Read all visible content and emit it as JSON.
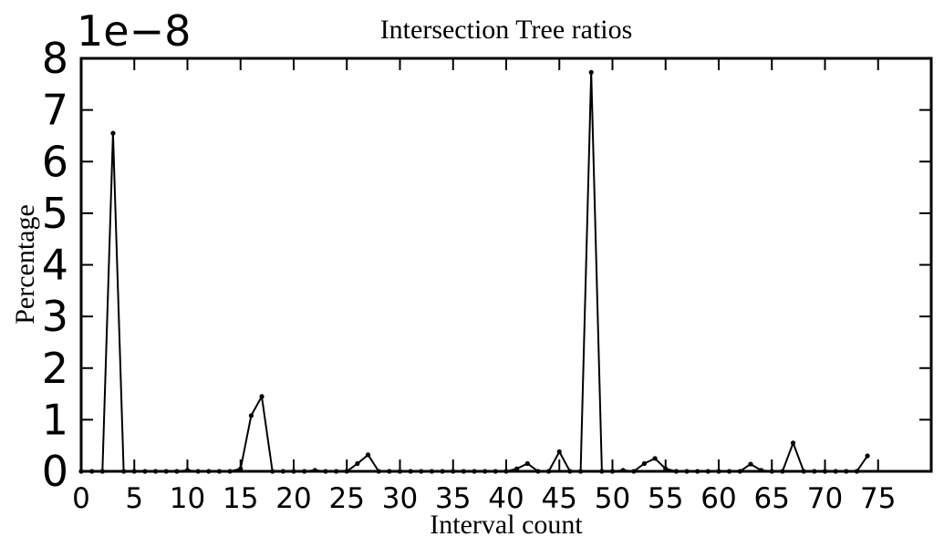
{
  "chart_data": {
    "type": "line",
    "title": "Intersection Tree ratios",
    "xlabel": "Interval count",
    "ylabel": "Percentage",
    "y_offset_label": "1e−8",
    "y_scale_factor": 1e-08,
    "xlim": [
      0,
      80
    ],
    "ylim": [
      0,
      8
    ],
    "x_ticks": [
      0,
      5,
      10,
      15,
      20,
      25,
      30,
      35,
      40,
      45,
      50,
      55,
      60,
      65,
      70,
      75
    ],
    "x_tick_labels": [
      "0",
      "5",
      "10",
      "15",
      "20",
      "25",
      "30",
      "35",
      "40",
      "45",
      "50",
      "55",
      "60",
      "65",
      "70",
      "75"
    ],
    "y_ticks": [
      0,
      1,
      2,
      3,
      4,
      5,
      6,
      7,
      8
    ],
    "y_tick_labels": [
      "0",
      "1",
      "2",
      "3",
      "4",
      "5",
      "6",
      "7",
      "8"
    ],
    "grid": false,
    "series": [
      {
        "color": "#000000",
        "marker": "dot",
        "x": [
          0,
          1,
          2,
          3,
          4,
          5,
          6,
          7,
          8,
          9,
          10,
          11,
          12,
          13,
          14,
          15,
          16,
          17,
          18,
          19,
          20,
          21,
          22,
          23,
          24,
          25,
          26,
          27,
          28,
          29,
          30,
          31,
          32,
          33,
          34,
          35,
          36,
          37,
          38,
          39,
          40,
          41,
          42,
          43,
          44,
          45,
          46,
          47,
          48,
          49,
          50,
          51,
          52,
          53,
          54,
          55,
          56,
          57,
          58,
          59,
          60,
          61,
          62,
          63,
          64,
          65,
          66,
          67,
          68,
          69,
          70,
          71,
          72,
          73,
          74
        ],
        "values": [
          0,
          0,
          0,
          6.55,
          0,
          0,
          0,
          0,
          0,
          0,
          0.02,
          0,
          0,
          0,
          0,
          0.05,
          1.08,
          1.45,
          0,
          0,
          0,
          0,
          0.02,
          0,
          0,
          0,
          0.15,
          0.32,
          0,
          0,
          0,
          0,
          0,
          0,
          0,
          0,
          0,
          0,
          0,
          0,
          0,
          0.05,
          0.15,
          0,
          0,
          0.38,
          0,
          0,
          7.73,
          0,
          0,
          0.02,
          0,
          0.15,
          0.25,
          0.05,
          0,
          0,
          0,
          0,
          0,
          0,
          0,
          0.14,
          0.02,
          0,
          0,
          0.55,
          0,
          0,
          0,
          0,
          0,
          0,
          0.3
        ]
      }
    ]
  }
}
